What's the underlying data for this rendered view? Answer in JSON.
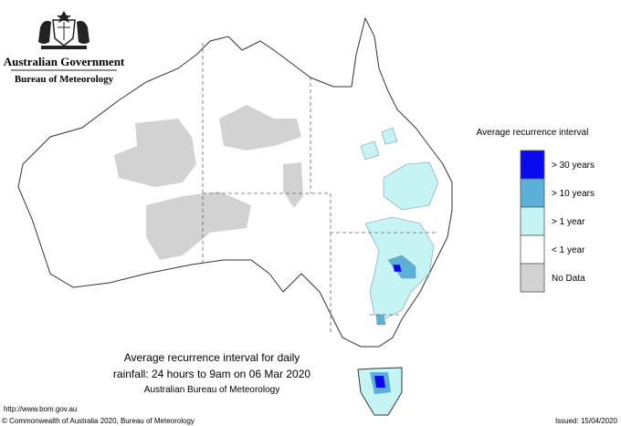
{
  "header": {
    "government": "Australian Government",
    "agency": "Bureau of Meteorology"
  },
  "legend": {
    "title": "Average recurrence interval",
    "items": [
      {
        "label": "> 30 years",
        "color": "#0a0aee"
      },
      {
        "label": "> 10 years",
        "color": "#5ab0d8"
      },
      {
        "label": "> 1 year",
        "color": "#c6f4f4"
      },
      {
        "label": "< 1 year",
        "color": "#ffffff"
      },
      {
        "label": "No Data",
        "color": "#d2d2d2"
      }
    ]
  },
  "caption": {
    "line1": "Average recurrence interval for daily",
    "line2": "rainfall: 24 hours to 9am on 06 Mar 2020",
    "line3": "Australian Bureau of Meteorology"
  },
  "footer": {
    "url": "http://www.bom.gov.au",
    "copyright": "© Commonwealth of Australia 2020, Bureau of Meteorology",
    "issued": "Issued: 15/04/2020"
  }
}
